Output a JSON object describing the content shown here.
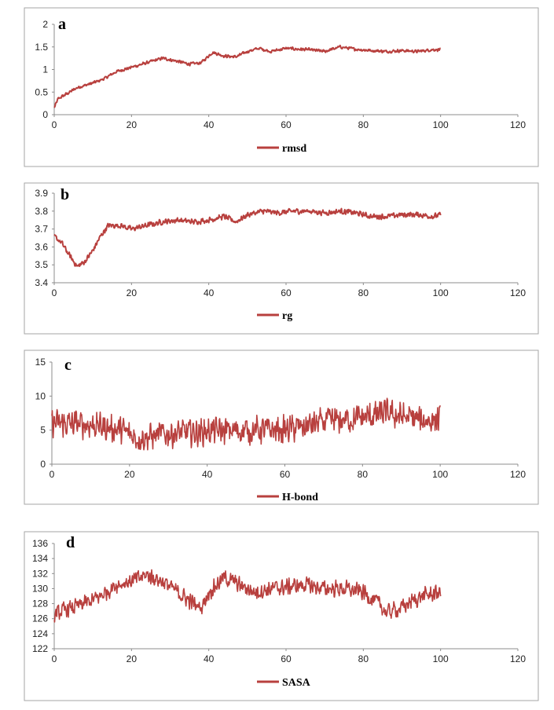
{
  "chart_data": [
    {
      "type": "line",
      "panel_label": "a",
      "legend": "rmsd",
      "x_ticks": [
        "0",
        "20",
        "40",
        "60",
        "80",
        "100",
        "120"
      ],
      "y_ticks": [
        "0",
        "0.5",
        "1",
        "1.5",
        "2"
      ],
      "xlim": [
        0,
        120
      ],
      "ylim": [
        0,
        2
      ],
      "x_range": [
        0,
        100
      ],
      "curve": [
        [
          0,
          0.15
        ],
        [
          1,
          0.35
        ],
        [
          3,
          0.45
        ],
        [
          6,
          0.6
        ],
        [
          10,
          0.7
        ],
        [
          13,
          0.8
        ],
        [
          16,
          0.95
        ],
        [
          20,
          1.05
        ],
        [
          24,
          1.15
        ],
        [
          28,
          1.25
        ],
        [
          31,
          1.2
        ],
        [
          35,
          1.12
        ],
        [
          38,
          1.15
        ],
        [
          41,
          1.38
        ],
        [
          44,
          1.3
        ],
        [
          47,
          1.28
        ],
        [
          50,
          1.4
        ],
        [
          53,
          1.47
        ],
        [
          56,
          1.4
        ],
        [
          60,
          1.47
        ],
        [
          63,
          1.45
        ],
        [
          66,
          1.44
        ],
        [
          70,
          1.4
        ],
        [
          74,
          1.5
        ],
        [
          78,
          1.45
        ],
        [
          82,
          1.42
        ],
        [
          86,
          1.4
        ],
        [
          90,
          1.42
        ],
        [
          94,
          1.4
        ],
        [
          98,
          1.44
        ],
        [
          100,
          1.44
        ]
      ],
      "noise": 0.04
    },
    {
      "type": "line",
      "panel_label": "b",
      "legend": "rg",
      "x_ticks": [
        "0",
        "20",
        "40",
        "60",
        "80",
        "100",
        "120"
      ],
      "y_ticks": [
        "3.4",
        "3.5",
        "3.6",
        "3.7",
        "3.8",
        "3.9"
      ],
      "xlim": [
        0,
        120
      ],
      "ylim": [
        3.4,
        3.9
      ],
      "x_range": [
        0,
        100
      ],
      "curve": [
        [
          0,
          3.66
        ],
        [
          2,
          3.62
        ],
        [
          4,
          3.55
        ],
        [
          6,
          3.49
        ],
        [
          8,
          3.52
        ],
        [
          10,
          3.58
        ],
        [
          12,
          3.66
        ],
        [
          14,
          3.72
        ],
        [
          17,
          3.72
        ],
        [
          20,
          3.7
        ],
        [
          24,
          3.72
        ],
        [
          28,
          3.74
        ],
        [
          32,
          3.75
        ],
        [
          36,
          3.74
        ],
        [
          40,
          3.75
        ],
        [
          44,
          3.77
        ],
        [
          47,
          3.74
        ],
        [
          50,
          3.78
        ],
        [
          54,
          3.8
        ],
        [
          58,
          3.79
        ],
        [
          62,
          3.8
        ],
        [
          66,
          3.8
        ],
        [
          70,
          3.79
        ],
        [
          74,
          3.8
        ],
        [
          78,
          3.79
        ],
        [
          82,
          3.77
        ],
        [
          86,
          3.77
        ],
        [
          90,
          3.78
        ],
        [
          94,
          3.78
        ],
        [
          98,
          3.77
        ],
        [
          100,
          3.78
        ]
      ],
      "noise": 0.018
    },
    {
      "type": "line",
      "panel_label": "c",
      "legend": "H-bond",
      "x_ticks": [
        "0",
        "20",
        "40",
        "60",
        "80",
        "100",
        "120"
      ],
      "y_ticks": [
        "0",
        "5",
        "10",
        "15"
      ],
      "xlim": [
        0,
        120
      ],
      "ylim": [
        0,
        15
      ],
      "x_range": [
        0,
        100
      ],
      "curve": [
        [
          0,
          6
        ],
        [
          10,
          5.8
        ],
        [
          18,
          5
        ],
        [
          22,
          3.8
        ],
        [
          30,
          4.5
        ],
        [
          40,
          4.8
        ],
        [
          50,
          5
        ],
        [
          60,
          5
        ],
        [
          65,
          5.5
        ],
        [
          70,
          6.2
        ],
        [
          80,
          6.8
        ],
        [
          86,
          7.5
        ],
        [
          90,
          7
        ],
        [
          95,
          6.5
        ],
        [
          100,
          6.5
        ]
      ],
      "noise": 2.4
    },
    {
      "type": "line",
      "panel_label": "d",
      "legend": "SASA",
      "x_ticks": [
        "0",
        "20",
        "40",
        "60",
        "80",
        "100",
        "120"
      ],
      "y_ticks": [
        "122",
        "124",
        "126",
        "128",
        "130",
        "132",
        "134",
        "136"
      ],
      "xlim": [
        0,
        120
      ],
      "ylim": [
        122,
        136
      ],
      "x_range": [
        0,
        100
      ],
      "curve": [
        [
          0,
          126.5
        ],
        [
          3,
          127.2
        ],
        [
          8,
          128
        ],
        [
          12,
          129
        ],
        [
          16,
          130.5
        ],
        [
          20,
          131
        ],
        [
          24,
          131.8
        ],
        [
          28,
          131
        ],
        [
          32,
          129.5
        ],
        [
          36,
          128
        ],
        [
          38,
          127.5
        ],
        [
          40,
          129.5
        ],
        [
          44,
          131.5
        ],
        [
          48,
          130.5
        ],
        [
          52,
          129.5
        ],
        [
          56,
          130
        ],
        [
          60,
          130.2
        ],
        [
          65,
          130.5
        ],
        [
          70,
          130
        ],
        [
          75,
          130
        ],
        [
          80,
          129.5
        ],
        [
          84,
          128
        ],
        [
          86,
          126.8
        ],
        [
          90,
          127.5
        ],
        [
          95,
          129
        ],
        [
          100,
          129.5
        ]
      ],
      "noise": 1.3
    }
  ]
}
